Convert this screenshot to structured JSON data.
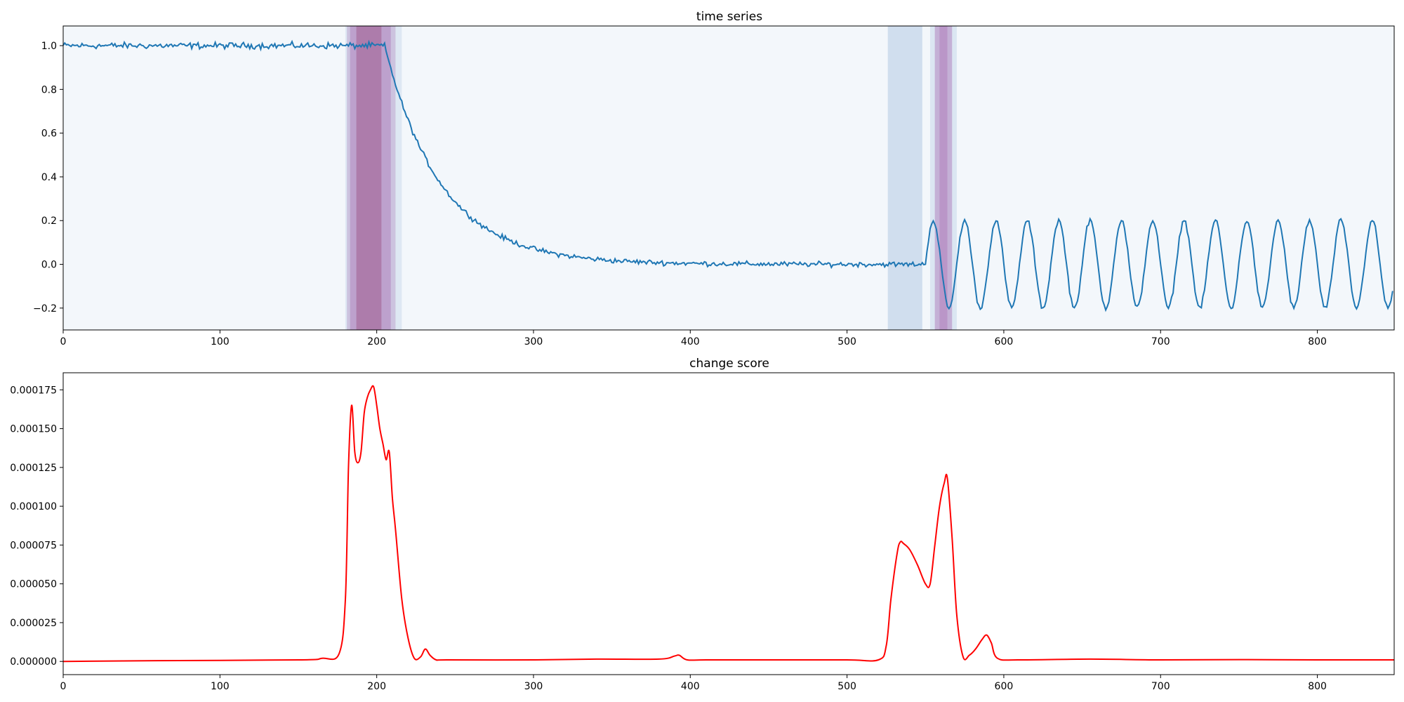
{
  "chart_data": [
    {
      "type": "line",
      "title": "time series",
      "xlim": [
        0,
        849
      ],
      "ylim": [
        -0.3,
        1.09
      ],
      "x_ticks": [
        0,
        100,
        200,
        300,
        400,
        500,
        600,
        700,
        800
      ],
      "x_tick_labels": [
        "0",
        "100",
        "200",
        "300",
        "400",
        "500",
        "600",
        "700",
        "800"
      ],
      "y_ticks": [
        -0.2,
        0.0,
        0.2,
        0.4,
        0.6,
        0.8,
        1.0
      ],
      "y_tick_labels": [
        "−0.2",
        "0.0",
        "0.2",
        "0.4",
        "0.6",
        "0.8",
        "1.0"
      ],
      "series_color": "#1f77b4",
      "background_color": "#f3f7fb",
      "highlight_bands": [
        {
          "x0": 180,
          "x1": 216,
          "color": "#dbe6f2",
          "opacity": 0.9
        },
        {
          "x0": 181,
          "x1": 212,
          "color": "#c7b9da",
          "opacity": 0.8
        },
        {
          "x0": 183,
          "x1": 209,
          "color": "#b998c8",
          "opacity": 0.8
        },
        {
          "x0": 187,
          "x1": 203,
          "color": "#a8709f",
          "opacity": 0.75
        },
        {
          "x0": 526,
          "x1": 548,
          "color": "#d0deee",
          "opacity": 1
        },
        {
          "x0": 553,
          "x1": 570,
          "color": "#dbe6f2",
          "opacity": 1
        },
        {
          "x0": 556,
          "x1": 567,
          "color": "#c1aad3",
          "opacity": 0.9
        },
        {
          "x0": 559,
          "x1": 564,
          "color": "#b890c4",
          "opacity": 0.8
        }
      ],
      "segments": [
        {
          "x0": 0,
          "x1": 180,
          "kind": "flat",
          "level": 1.0,
          "noise": 0.01
        },
        {
          "x0": 180,
          "x1": 205,
          "kind": "flat",
          "level": 1.0,
          "noise": 0.01
        },
        {
          "x0": 205,
          "x1": 550,
          "kind": "decay",
          "start": 1.0,
          "end": 0.0,
          "tau": 36,
          "noise": 0.008
        },
        {
          "x0": 550,
          "x1": 849,
          "kind": "sine",
          "amplitude": 0.2,
          "period": 20,
          "phase_start": 550,
          "noise": 0.008
        }
      ]
    },
    {
      "type": "line",
      "title": "change score",
      "xlim": [
        0,
        849
      ],
      "ylim": [
        -8.5e-06,
        0.000186
      ],
      "x_ticks": [
        0,
        100,
        200,
        300,
        400,
        500,
        600,
        700,
        800
      ],
      "x_tick_labels": [
        "0",
        "100",
        "200",
        "300",
        "400",
        "500",
        "600",
        "700",
        "800"
      ],
      "y_ticks": [
        0.0,
        2.5e-05,
        5e-05,
        7.5e-05,
        0.0001,
        0.000125,
        0.00015,
        0.000175
      ],
      "y_tick_labels": [
        "0.000000",
        "0.000025",
        "0.000050",
        "0.000075",
        "0.000100",
        "0.000125",
        "0.000150",
        "0.000175"
      ],
      "series_color": "#ff0000",
      "x": [
        0,
        60,
        150,
        165,
        176,
        180,
        182,
        184,
        186,
        188,
        190,
        192,
        194,
        196,
        198,
        200,
        202,
        204,
        206,
        208,
        210,
        212,
        216,
        220,
        224,
        228,
        231,
        234,
        238,
        245,
        300,
        340,
        380,
        390,
        393,
        398,
        410,
        450,
        500,
        520,
        525,
        528,
        532,
        534,
        536,
        540,
        545,
        550,
        553,
        556,
        559,
        562,
        564,
        567,
        570,
        574,
        578,
        582,
        586,
        589,
        592,
        596,
        610,
        655,
        700,
        750,
        800,
        849
      ],
      "y": [
        0,
        5e-07,
        1e-06,
        2e-06,
        5e-06,
        4e-05,
        0.000125,
        0.000165,
        0.000135,
        0.000128,
        0.000135,
        0.00016,
        0.00017,
        0.000175,
        0.000177,
        0.000165,
        0.00015,
        0.00014,
        0.00013,
        0.000135,
        0.000105,
        8.5e-05,
        4e-05,
        1.5e-05,
        2e-06,
        3e-06,
        8e-06,
        4e-06,
        1e-06,
        1e-06,
        1e-06,
        1.5e-06,
        1.5e-06,
        3.5e-06,
        4e-06,
        1e-06,
        1e-06,
        1e-06,
        1e-06,
        1e-06,
        1e-05,
        4e-05,
        7e-05,
        7.7e-05,
        7.6e-05,
        7.2e-05,
        6.2e-05,
        5e-05,
        5e-05,
        7.5e-05,
        0.0001,
        0.000115,
        0.000118,
        8e-05,
        3e-05,
        3e-06,
        4e-06,
        8e-06,
        1.4e-05,
        1.7e-05,
        1.2e-05,
        2e-06,
        1e-06,
        1.5e-06,
        1e-06,
        1.2e-06,
        1e-06,
        1e-06
      ]
    }
  ]
}
